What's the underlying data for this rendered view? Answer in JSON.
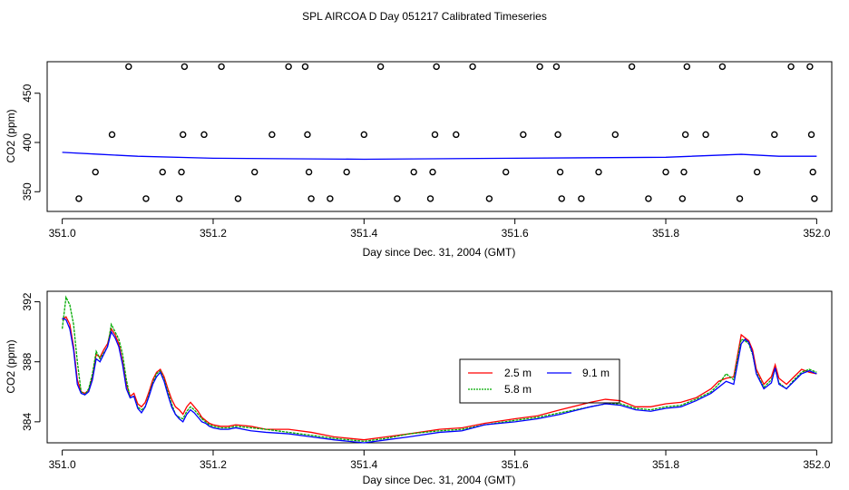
{
  "title": "SPL AIRCOA D  Day 051217  Calibrated Timeseries",
  "chart_data": [
    {
      "type": "line+scatter",
      "xlabel": "Day since Dec. 31, 2004 (GMT)",
      "ylabel": "CO2 (ppm)",
      "xlim": [
        350.98,
        352.02
      ],
      "ylim": [
        330,
        482
      ],
      "xticks": [
        351.0,
        351.2,
        351.4,
        351.6,
        351.8,
        352.0
      ],
      "xtick_labels": [
        "351.0",
        "351.2",
        "351.4",
        "351.6",
        "351.8",
        "352.0"
      ],
      "yticks": [
        350,
        400,
        450
      ],
      "ytick_labels": [
        "350",
        "400",
        "450"
      ],
      "calibration_points": [
        {
          "x": 351.022,
          "y": 343
        },
        {
          "x": 351.044,
          "y": 370
        },
        {
          "x": 351.066,
          "y": 408
        },
        {
          "x": 351.088,
          "y": 477
        },
        {
          "x": 351.111,
          "y": 343
        },
        {
          "x": 351.133,
          "y": 370
        },
        {
          "x": 351.155,
          "y": 343
        },
        {
          "x": 351.158,
          "y": 370
        },
        {
          "x": 351.16,
          "y": 408
        },
        {
          "x": 351.162,
          "y": 477
        },
        {
          "x": 351.188,
          "y": 408
        },
        {
          "x": 351.211,
          "y": 477
        },
        {
          "x": 351.233,
          "y": 343
        },
        {
          "x": 351.255,
          "y": 370
        },
        {
          "x": 351.278,
          "y": 408
        },
        {
          "x": 351.3,
          "y": 477
        },
        {
          "x": 351.322,
          "y": 477
        },
        {
          "x": 351.325,
          "y": 408
        },
        {
          "x": 351.327,
          "y": 370
        },
        {
          "x": 351.33,
          "y": 343
        },
        {
          "x": 351.355,
          "y": 343
        },
        {
          "x": 351.377,
          "y": 370
        },
        {
          "x": 351.4,
          "y": 408
        },
        {
          "x": 351.422,
          "y": 477
        },
        {
          "x": 351.444,
          "y": 343
        },
        {
          "x": 351.466,
          "y": 370
        },
        {
          "x": 351.488,
          "y": 343
        },
        {
          "x": 351.491,
          "y": 370
        },
        {
          "x": 351.494,
          "y": 408
        },
        {
          "x": 351.496,
          "y": 477
        },
        {
          "x": 351.522,
          "y": 408
        },
        {
          "x": 351.544,
          "y": 477
        },
        {
          "x": 351.566,
          "y": 343
        },
        {
          "x": 351.588,
          "y": 370
        },
        {
          "x": 351.611,
          "y": 408
        },
        {
          "x": 351.633,
          "y": 477
        },
        {
          "x": 351.655,
          "y": 477
        },
        {
          "x": 351.657,
          "y": 408
        },
        {
          "x": 351.66,
          "y": 370
        },
        {
          "x": 351.662,
          "y": 343
        },
        {
          "x": 351.688,
          "y": 343
        },
        {
          "x": 351.711,
          "y": 370
        },
        {
          "x": 351.733,
          "y": 408
        },
        {
          "x": 351.755,
          "y": 477
        },
        {
          "x": 351.777,
          "y": 343
        },
        {
          "x": 351.8,
          "y": 370
        },
        {
          "x": 351.822,
          "y": 343
        },
        {
          "x": 351.824,
          "y": 370
        },
        {
          "x": 351.826,
          "y": 408
        },
        {
          "x": 351.828,
          "y": 477
        },
        {
          "x": 351.853,
          "y": 408
        },
        {
          "x": 351.875,
          "y": 477
        },
        {
          "x": 351.898,
          "y": 343
        },
        {
          "x": 351.921,
          "y": 370
        },
        {
          "x": 351.944,
          "y": 408
        },
        {
          "x": 351.966,
          "y": 477
        },
        {
          "x": 351.991,
          "y": 477
        },
        {
          "x": 351.993,
          "y": 408
        },
        {
          "x": 351.995,
          "y": 370
        },
        {
          "x": 351.997,
          "y": 343
        }
      ],
      "series": [
        {
          "name": "trace",
          "color": "#0000ff",
          "x": [
            351.0,
            351.05,
            351.1,
            351.2,
            351.4,
            351.6,
            351.8,
            351.9,
            351.95,
            352.0
          ],
          "values": [
            390,
            388,
            386,
            384,
            383,
            384,
            385,
            388,
            386,
            386
          ]
        }
      ]
    },
    {
      "type": "line",
      "xlabel": "Day since Dec. 31, 2004 (GMT)",
      "ylabel": "CO2 (ppm)",
      "xlim": [
        350.98,
        352.02
      ],
      "ylim": [
        382.6,
        392.7
      ],
      "xticks": [
        351.0,
        351.2,
        351.4,
        351.6,
        351.8,
        352.0
      ],
      "xtick_labels": [
        "351.0",
        "351.2",
        "351.4",
        "351.6",
        "351.8",
        "352.0"
      ],
      "yticks": [
        384,
        388,
        392
      ],
      "ytick_labels": [
        "384",
        "388",
        "392"
      ],
      "x": [
        351.0,
        351.005,
        351.01,
        351.015,
        351.02,
        351.025,
        351.03,
        351.035,
        351.04,
        351.045,
        351.05,
        351.055,
        351.06,
        351.065,
        351.07,
        351.075,
        351.08,
        351.085,
        351.09,
        351.095,
        351.1,
        351.105,
        351.11,
        351.115,
        351.12,
        351.125,
        351.13,
        351.135,
        351.14,
        351.145,
        351.15,
        351.155,
        351.16,
        351.165,
        351.17,
        351.175,
        351.18,
        351.185,
        351.19,
        351.195,
        351.2,
        351.21,
        351.22,
        351.23,
        351.25,
        351.27,
        351.3,
        351.33,
        351.36,
        351.4,
        351.43,
        351.46,
        351.5,
        351.53,
        351.56,
        351.6,
        351.63,
        351.66,
        351.7,
        351.72,
        351.74,
        351.76,
        351.78,
        351.8,
        351.82,
        351.84,
        351.86,
        351.87,
        351.88,
        351.89,
        351.9,
        351.905,
        351.91,
        351.915,
        351.92,
        351.93,
        351.94,
        351.945,
        351.95,
        351.96,
        351.97,
        351.98,
        351.99,
        352.0
      ],
      "series": [
        {
          "name": "2.5 m",
          "color": "#ff0000",
          "values": [
            390.8,
            391.0,
            390.5,
            389.0,
            386.8,
            386.0,
            385.9,
            386.1,
            387.0,
            388.5,
            388.3,
            388.8,
            389.2,
            390.2,
            389.8,
            389.2,
            388.0,
            386.5,
            385.7,
            385.9,
            385.2,
            385.0,
            385.3,
            386.0,
            386.8,
            387.3,
            387.5,
            387.0,
            386.2,
            385.5,
            385.0,
            384.8,
            384.5,
            385.0,
            385.3,
            385.0,
            384.7,
            384.3,
            384.1,
            383.9,
            383.8,
            383.7,
            383.7,
            383.8,
            383.7,
            383.5,
            383.5,
            383.3,
            383.0,
            382.8,
            383.0,
            383.2,
            383.5,
            383.6,
            383.9,
            384.2,
            384.4,
            384.8,
            385.3,
            385.5,
            385.4,
            385.0,
            385.0,
            385.2,
            385.3,
            385.6,
            386.2,
            386.7,
            386.9,
            387.0,
            389.8,
            389.6,
            389.4,
            388.8,
            387.5,
            386.5,
            387.0,
            387.8,
            386.9,
            386.5,
            387.0,
            387.5,
            387.3,
            387.2
          ]
        },
        {
          "name": "5.8 m",
          "color": "#00aa00",
          "values": [
            390.2,
            392.3,
            391.8,
            390.5,
            388.0,
            386.0,
            385.8,
            386.2,
            387.2,
            388.7,
            388.2,
            388.6,
            389.0,
            390.5,
            390.0,
            389.5,
            388.5,
            386.8,
            385.6,
            385.7,
            385.0,
            384.8,
            385.0,
            385.8,
            386.6,
            387.2,
            387.4,
            386.8,
            386.0,
            385.2,
            384.5,
            384.3,
            384.2,
            384.7,
            385.0,
            384.8,
            384.5,
            384.2,
            384.0,
            383.8,
            383.7,
            383.6,
            383.6,
            383.7,
            383.6,
            383.5,
            383.3,
            383.1,
            382.9,
            382.7,
            382.9,
            383.2,
            383.4,
            383.5,
            383.8,
            384.1,
            384.3,
            384.6,
            385.0,
            385.2,
            385.2,
            384.9,
            384.8,
            385.0,
            385.1,
            385.5,
            386.0,
            386.5,
            387.2,
            386.8,
            389.5,
            389.4,
            389.2,
            388.5,
            387.3,
            386.3,
            386.8,
            387.5,
            386.6,
            386.2,
            386.8,
            387.3,
            387.5,
            387.3
          ]
        },
        {
          "name": "9.1 m",
          "color": "#0000ff",
          "values": [
            390.9,
            390.8,
            390.2,
            388.8,
            386.5,
            385.9,
            385.8,
            386.0,
            386.8,
            388.2,
            388.0,
            388.5,
            389.0,
            390.0,
            389.6,
            389.0,
            387.8,
            386.2,
            385.6,
            385.7,
            384.9,
            384.6,
            385.0,
            385.7,
            386.5,
            387.0,
            387.3,
            386.7,
            385.8,
            385.0,
            384.5,
            384.2,
            384.0,
            384.5,
            384.8,
            384.6,
            384.3,
            384.0,
            383.9,
            383.7,
            383.6,
            383.5,
            383.5,
            383.6,
            383.4,
            383.3,
            383.2,
            383.0,
            382.8,
            382.6,
            382.8,
            383.0,
            383.3,
            383.4,
            383.8,
            384.0,
            384.2,
            384.5,
            385.0,
            385.2,
            385.1,
            384.8,
            384.7,
            384.9,
            385.0,
            385.4,
            385.9,
            386.3,
            386.7,
            386.5,
            389.2,
            389.5,
            389.3,
            388.6,
            387.2,
            386.2,
            386.6,
            387.6,
            386.5,
            386.2,
            386.7,
            387.2,
            387.4,
            387.2
          ]
        }
      ],
      "legend": {
        "placement": "center-right",
        "entries": [
          "2.5 m",
          "9.1 m",
          "5.8 m"
        ]
      }
    }
  ]
}
